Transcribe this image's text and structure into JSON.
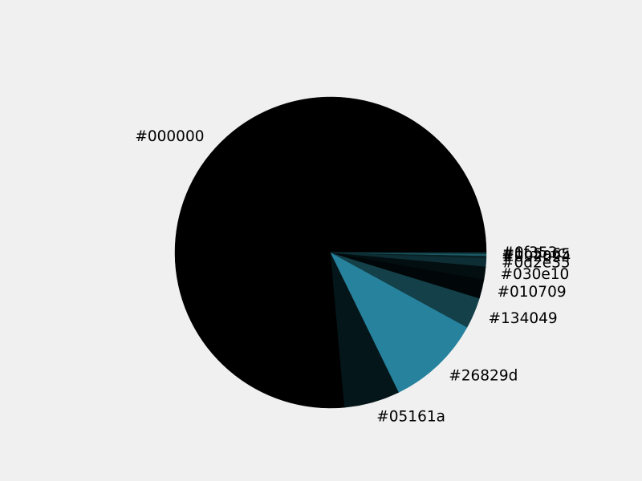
{
  "chart_data": {
    "type": "pie",
    "title": "",
    "slices": [
      {
        "label": "#000000",
        "value": 80.4,
        "color": "#000000"
      },
      {
        "label": "#05161a",
        "value": 6.1,
        "color": "#05161a"
      },
      {
        "label": "#26829d",
        "value": 10.3,
        "color": "#26829d"
      },
      {
        "label": "#134049",
        "value": 3.4,
        "color": "#134049"
      },
      {
        "label": "#010709",
        "value": 2.1,
        "color": "#010709"
      },
      {
        "label": "#030e10",
        "value": 1.4,
        "color": "#030e10"
      },
      {
        "label": "#0d2e35",
        "value": 0.9,
        "color": "#0d2e35"
      },
      {
        "label": "#092024",
        "value": 0.25,
        "color": "#092024"
      },
      {
        "label": "#1b5a65",
        "value": 0.2,
        "color": "#1b5a65"
      },
      {
        "label": "#0f353c",
        "value": 0.15,
        "color": "#0f353c"
      }
    ]
  }
}
